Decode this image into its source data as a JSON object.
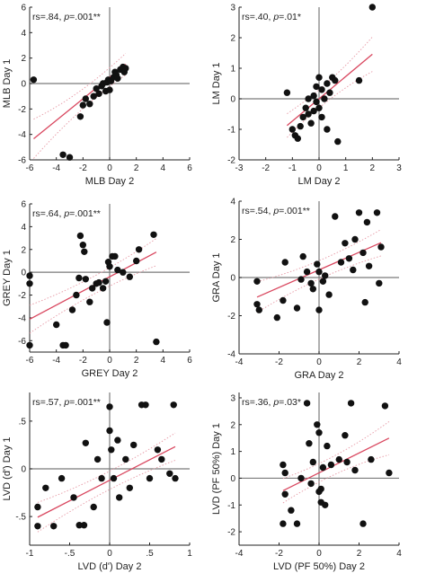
{
  "chart_data": [
    {
      "type": "scatter",
      "annotation": "rs=.84, p=.001**",
      "xlabel": "MLB Day 2",
      "ylabel": "MLB Day 1",
      "xlim": [
        -6,
        6
      ],
      "ylim": [
        -6,
        6
      ],
      "xticks": [
        -6,
        -4,
        -2,
        0,
        2,
        4,
        6
      ],
      "yticks": [
        -6,
        -4,
        -2,
        0,
        2,
        4,
        6
      ],
      "regression": {
        "slope": 0.85,
        "intercept": 0.5
      },
      "points": [
        [
          -5.7,
          0.3
        ],
        [
          -3.5,
          -5.6
        ],
        [
          -3,
          -5.8
        ],
        [
          -2.2,
          -2.6
        ],
        [
          -2,
          -1.7
        ],
        [
          -1.8,
          -1.2
        ],
        [
          -1.5,
          -1.6
        ],
        [
          -1.2,
          -1
        ],
        [
          -1,
          -0.4
        ],
        [
          -0.8,
          -0.8
        ],
        [
          -0.6,
          -0.2
        ],
        [
          -0.5,
          0
        ],
        [
          -0.3,
          -0.6
        ],
        [
          -0.2,
          0.1
        ],
        [
          -0.1,
          0.3
        ],
        [
          0,
          -0.5
        ],
        [
          0.1,
          0.2
        ],
        [
          0.3,
          0.5
        ],
        [
          0.4,
          0.9
        ],
        [
          0.5,
          0.7
        ],
        [
          0.6,
          0.4
        ],
        [
          0.8,
          1.1
        ],
        [
          1,
          1.3
        ],
        [
          1.1,
          0.9
        ],
        [
          1.2,
          1.2
        ]
      ]
    },
    {
      "type": "scatter",
      "annotation": "rs=.40, p=.01*",
      "xlabel": "LM Day 2",
      "ylabel": "LM Day 1",
      "xlim": [
        -3,
        3
      ],
      "ylim": [
        -2,
        3
      ],
      "xticks": [
        -3,
        -2,
        -1,
        0,
        1,
        2,
        3
      ],
      "yticks": [
        -2,
        -1,
        0,
        1,
        2,
        3
      ],
      "regression": {
        "slope": 0.73,
        "intercept": 0.0
      },
      "points": [
        [
          -1.2,
          0.2
        ],
        [
          -1,
          -1
        ],
        [
          -0.9,
          -1.2
        ],
        [
          -0.8,
          -1.3
        ],
        [
          -0.7,
          -0.9
        ],
        [
          -0.6,
          -0.6
        ],
        [
          -0.5,
          -0.3
        ],
        [
          -0.4,
          0
        ],
        [
          -0.4,
          -0.5
        ],
        [
          -0.3,
          -0.8
        ],
        [
          -0.2,
          -0.4
        ],
        [
          -0.2,
          0.1
        ],
        [
          -0.1,
          0.4
        ],
        [
          -0.1,
          -0.1
        ],
        [
          0,
          0.7
        ],
        [
          0,
          -0.3
        ],
        [
          0.1,
          0.3
        ],
        [
          0.1,
          -0.6
        ],
        [
          0.2,
          0
        ],
        [
          0.3,
          0.5
        ],
        [
          0.3,
          -1
        ],
        [
          0.4,
          0.2
        ],
        [
          0.5,
          0.7
        ],
        [
          0.6,
          0.6
        ],
        [
          0.7,
          -1.4
        ],
        [
          1.5,
          0.6
        ],
        [
          2,
          3
        ]
      ]
    },
    {
      "type": "scatter",
      "annotation": "rs=.64, p=.001**",
      "xlabel": "GREY Day 2",
      "ylabel": "GREY Day 1",
      "xlim": [
        -6,
        6
      ],
      "ylim": [
        -7,
        6
      ],
      "xticks": [
        -6,
        -4,
        -2,
        0,
        2,
        4,
        6
      ],
      "yticks": [
        -6,
        -4,
        -2,
        0,
        2,
        4,
        6
      ],
      "regression": {
        "slope": 0.62,
        "intercept": -0.4
      },
      "points": [
        [
          -6,
          -0.3
        ],
        [
          -6,
          -1
        ],
        [
          -6,
          -6.4
        ],
        [
          -4,
          -4.6
        ],
        [
          -3.5,
          -6.4
        ],
        [
          -3.3,
          -6.4
        ],
        [
          -2.8,
          -3.3
        ],
        [
          -2.5,
          -2
        ],
        [
          -2.3,
          -0.5
        ],
        [
          -2.2,
          3.2
        ],
        [
          -2,
          2.4
        ],
        [
          -1.9,
          1.8
        ],
        [
          -1.8,
          -0.6
        ],
        [
          -1.5,
          -2.6
        ],
        [
          -1.3,
          -1.4
        ],
        [
          -1,
          -1
        ],
        [
          -0.8,
          -0.9
        ],
        [
          -0.5,
          -1.4
        ],
        [
          -0.3,
          -0.8
        ],
        [
          -0.2,
          -4.4
        ],
        [
          -0.1,
          0.9
        ],
        [
          0,
          0.5
        ],
        [
          0.2,
          1.4
        ],
        [
          0.4,
          1.4
        ],
        [
          0.6,
          0.2
        ],
        [
          1,
          0
        ],
        [
          1.5,
          -0.4
        ],
        [
          2,
          1
        ],
        [
          2.2,
          2
        ],
        [
          3.3,
          3.3
        ],
        [
          3.5,
          -6.1
        ]
      ]
    },
    {
      "type": "scatter",
      "annotation": "rs=.54, p=.001**",
      "xlabel": "GRA Day 2",
      "ylabel": "GRA Day 1",
      "xlim": [
        -4,
        4
      ],
      "ylim": [
        -4,
        4
      ],
      "xticks": [
        -4,
        -2,
        0,
        2,
        4
      ],
      "yticks": [
        -4,
        -2,
        0,
        2,
        4
      ],
      "regression": {
        "slope": 0.46,
        "intercept": 0.4
      },
      "points": [
        [
          -3.1,
          -0.2
        ],
        [
          -3.1,
          -1.4
        ],
        [
          -3,
          -1.7
        ],
        [
          -2.1,
          -2.1
        ],
        [
          -1.8,
          -1.2
        ],
        [
          -1.7,
          0.8
        ],
        [
          -1.1,
          -1.6
        ],
        [
          -0.9,
          -0.1
        ],
        [
          -0.8,
          1.1
        ],
        [
          -0.6,
          0.3
        ],
        [
          -0.4,
          -0.3
        ],
        [
          -0.3,
          -0.6
        ],
        [
          -0.1,
          0.7
        ],
        [
          0,
          0.3
        ],
        [
          0,
          -1.7
        ],
        [
          0.2,
          -0.2
        ],
        [
          0.3,
          0.1
        ],
        [
          0.5,
          -0.9
        ],
        [
          0.8,
          3.2
        ],
        [
          1.1,
          0.8
        ],
        [
          1.3,
          1.8
        ],
        [
          1.5,
          1
        ],
        [
          1.7,
          0.4
        ],
        [
          1.8,
          2
        ],
        [
          2,
          3.4
        ],
        [
          2.2,
          1.3
        ],
        [
          2.3,
          -1.3
        ],
        [
          2.4,
          2.9
        ],
        [
          2.5,
          0.6
        ],
        [
          2.9,
          3.4
        ],
        [
          3,
          -0.3
        ],
        [
          3.1,
          1.6
        ]
      ]
    },
    {
      "type": "scatter",
      "annotation": "rs=.57, p=.001**",
      "xlabel": "LVD (d') Day 2",
      "ylabel": "LVD (d') Day 1",
      "xlim": [
        -1,
        1
      ],
      "ylim": [
        -0.8,
        0.8
      ],
      "xticks": [
        -1,
        -0.5,
        0,
        0.5,
        1
      ],
      "yticks": [
        -0.5,
        0,
        0.5
      ],
      "regression": {
        "slope": 0.43,
        "intercept": -0.12
      },
      "points": [
        [
          -0.9,
          -0.6
        ],
        [
          -0.9,
          -0.4
        ],
        [
          -0.8,
          -0.2
        ],
        [
          -0.7,
          -0.6
        ],
        [
          -0.6,
          -0.1
        ],
        [
          -0.45,
          -0.3
        ],
        [
          -0.38,
          -0.59
        ],
        [
          -0.32,
          -0.59
        ],
        [
          -0.3,
          0.27
        ],
        [
          -0.2,
          -0.4
        ],
        [
          -0.15,
          0.1
        ],
        [
          -0.1,
          -0.1
        ],
        [
          0,
          0.65
        ],
        [
          0,
          0.4
        ],
        [
          0.02,
          0.2
        ],
        [
          0.05,
          -0.1
        ],
        [
          0.1,
          0.3
        ],
        [
          0.12,
          -0.3
        ],
        [
          0.2,
          0.1
        ],
        [
          0.25,
          -0.2
        ],
        [
          0.3,
          0.25
        ],
        [
          0.4,
          0.67
        ],
        [
          0.45,
          0.67
        ],
        [
          0.5,
          -0.1
        ],
        [
          0.6,
          0.2
        ],
        [
          0.65,
          0.1
        ],
        [
          0.75,
          -0.05
        ],
        [
          0.8,
          0.67
        ],
        [
          0.82,
          -0.1
        ]
      ]
    },
    {
      "type": "scatter",
      "annotation": "rs=.36, p=.03*",
      "xlabel": "LVD (PF 50%) Day 2",
      "ylabel": "LVD (PF 50%) Day 1",
      "xlim": [
        -4,
        4
      ],
      "ylim": [
        -2.5,
        3.2
      ],
      "xticks": [
        -4,
        -2,
        0,
        2,
        4
      ],
      "yticks": [
        -2,
        -1,
        0,
        1,
        2,
        3
      ],
      "regression": {
        "slope": 0.37,
        "intercept": 0.2
      },
      "points": [
        [
          -1.8,
          -1.7
        ],
        [
          -1.8,
          0.5
        ],
        [
          -1.7,
          0.2
        ],
        [
          -1.7,
          -0.6
        ],
        [
          -1.4,
          -1.2
        ],
        [
          -1.1,
          -1.7
        ],
        [
          -0.9,
          0
        ],
        [
          -0.6,
          2.8
        ],
        [
          -0.5,
          1.3
        ],
        [
          -0.4,
          -0.2
        ],
        [
          -0.3,
          0.6
        ],
        [
          -0.1,
          2
        ],
        [
          0,
          -0.5
        ],
        [
          0,
          1.7
        ],
        [
          0.1,
          -0.9
        ],
        [
          0.1,
          -0.4
        ],
        [
          0.2,
          0.4
        ],
        [
          0.3,
          -1
        ],
        [
          0.4,
          1.2
        ],
        [
          0.6,
          0.5
        ],
        [
          1,
          0.7
        ],
        [
          1.3,
          1.6
        ],
        [
          1.4,
          0.6
        ],
        [
          1.6,
          2.8
        ],
        [
          1.8,
          0.3
        ],
        [
          2.2,
          -1.7
        ],
        [
          2.6,
          0.7
        ],
        [
          3.3,
          2.7
        ],
        [
          3.5,
          0.2
        ]
      ]
    }
  ]
}
